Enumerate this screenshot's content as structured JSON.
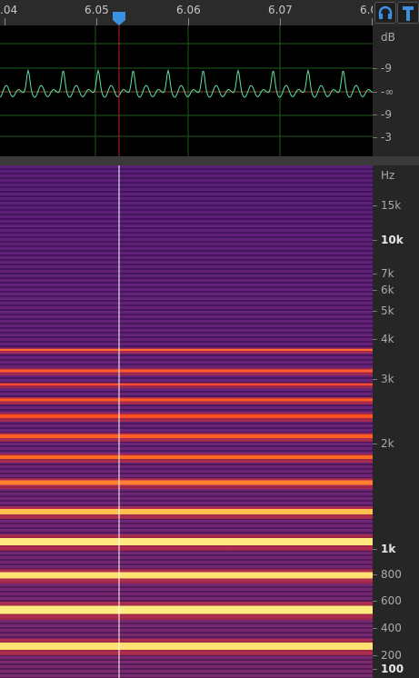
{
  "ruler": {
    "labels": [
      ".04",
      "6.05",
      "6.06",
      "6.07",
      "6.0"
    ]
  },
  "waveform": {
    "db_labels": [
      "dB",
      "-9",
      "-∞",
      "-9",
      "-3"
    ]
  },
  "spectrogram": {
    "hz_labels": [
      "Hz",
      "15k",
      "10k",
      "7k",
      "6k",
      "5k",
      "4k",
      "3k",
      "2k",
      "1k",
      "800",
      "600",
      "400",
      "200",
      "100"
    ]
  }
}
